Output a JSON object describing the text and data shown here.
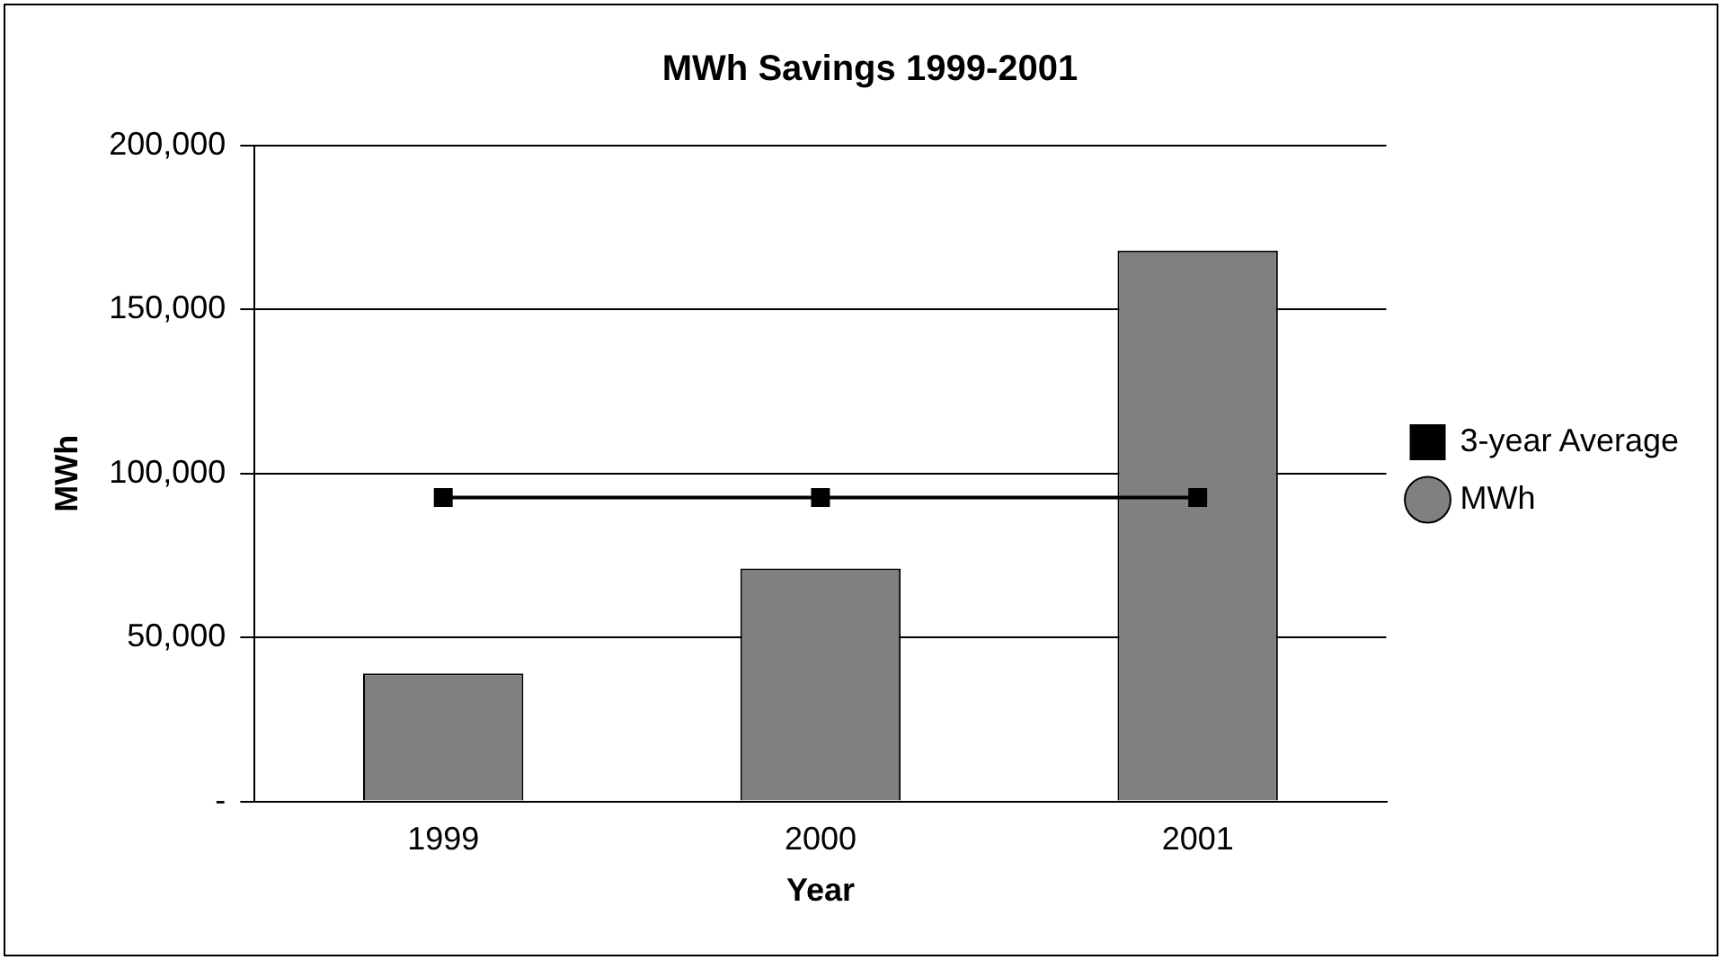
{
  "chart_data": {
    "type": "bar",
    "title": "MWh Savings 1999-2001",
    "xlabel": "Year",
    "ylabel": "MWh",
    "categories": [
      "1999",
      "2000",
      "2001"
    ],
    "series": [
      {
        "name": "MWh",
        "color": "#808080",
        "values": [
          39000,
          71000,
          168000
        ]
      },
      {
        "name": "3-year Average",
        "type": "line",
        "color": "#000000",
        "values": [
          92700,
          92700,
          92700
        ],
        "marker": "square"
      }
    ],
    "ylim": [
      0,
      200000
    ],
    "yticks": [
      {
        "value": 0,
        "label": "-"
      },
      {
        "value": 50000,
        "label": "50,000"
      },
      {
        "value": 100000,
        "label": "100,000"
      },
      {
        "value": 150000,
        "label": "150,000"
      },
      {
        "value": 200000,
        "label": "200,000"
      }
    ],
    "grid": "y",
    "legend": "right"
  }
}
